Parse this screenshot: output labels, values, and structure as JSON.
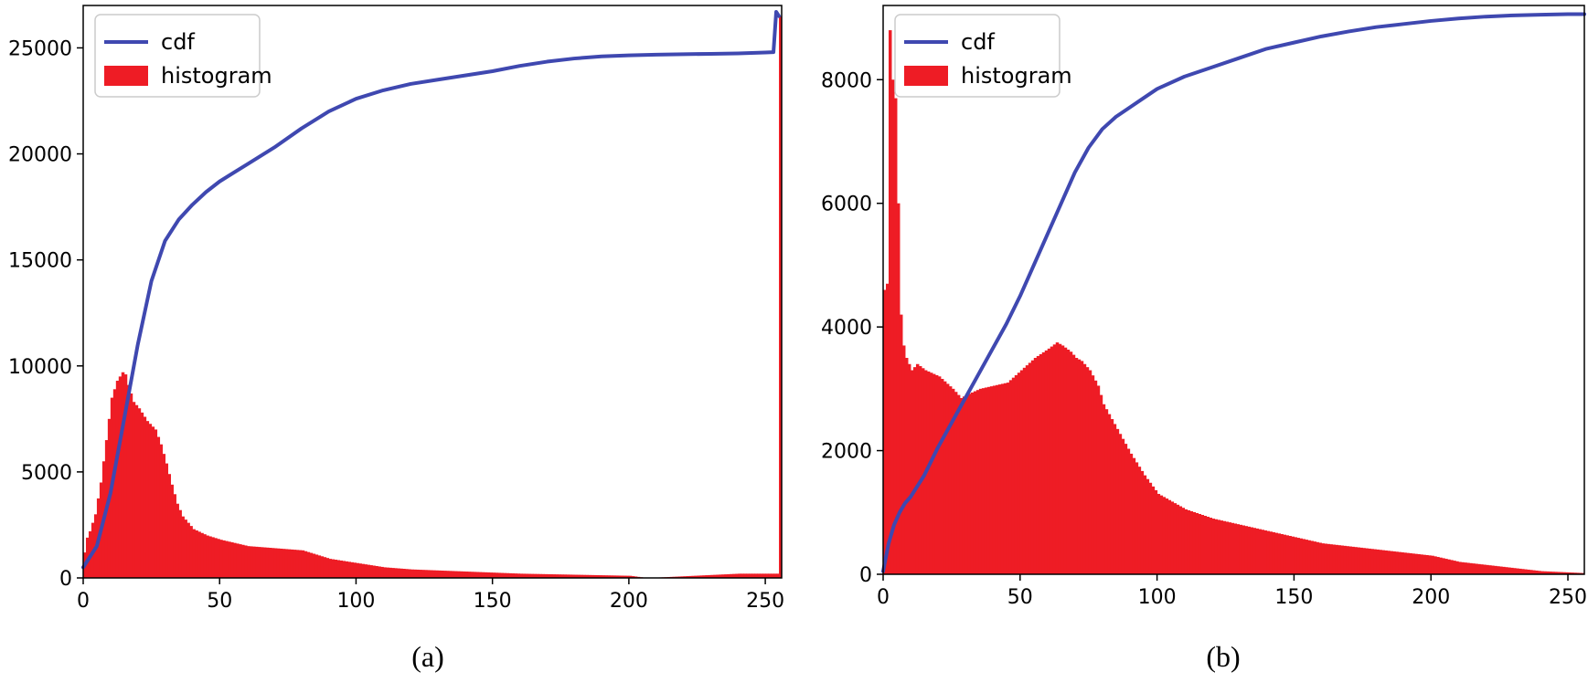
{
  "chart_data": [
    {
      "type": "bar",
      "panel_label": "(a)",
      "legend": [
        "cdf",
        "histogram"
      ],
      "legend_position": "top-left",
      "xlim": [
        0,
        256
      ],
      "ylim": [
        0,
        27000
      ],
      "x_ticks": [
        0,
        50,
        100,
        150,
        200,
        250
      ],
      "y_ticks": [
        0,
        5000,
        10000,
        15000,
        20000,
        25000
      ],
      "grid": false,
      "colors": {
        "histogram": "#ee1c25",
        "cdf": "#3f48b0"
      },
      "cdf": {
        "name": "cdf",
        "x": [
          0,
          5,
          10,
          15,
          20,
          25,
          30,
          35,
          40,
          45,
          50,
          60,
          70,
          80,
          90,
          100,
          110,
          120,
          130,
          140,
          150,
          160,
          170,
          180,
          190,
          200,
          210,
          220,
          230,
          240,
          250,
          253,
          254,
          255
        ],
        "y": [
          500,
          1500,
          4000,
          7500,
          11000,
          14000,
          15900,
          16900,
          17600,
          18200,
          18700,
          19500,
          20300,
          21200,
          22000,
          22600,
          23000,
          23300,
          23500,
          23700,
          23900,
          24150,
          24350,
          24500,
          24600,
          24650,
          24680,
          24700,
          24720,
          24740,
          24780,
          24800,
          26700,
          26500
        ]
      },
      "histogram": {
        "name": "histogram",
        "bins": [
          0,
          256
        ],
        "x": [
          0,
          1,
          2,
          4,
          6,
          8,
          10,
          12,
          14,
          15,
          16,
          18,
          20,
          23,
          26,
          28,
          30,
          32,
          34,
          36,
          40,
          45,
          50,
          60,
          70,
          80,
          90,
          100,
          110,
          120,
          140,
          160,
          180,
          200,
          206,
          207,
          240,
          241,
          254,
          255
        ],
        "y": [
          1200,
          1900,
          2200,
          3000,
          4500,
          6500,
          8500,
          9300,
          9700,
          9600,
          9100,
          8300,
          8000,
          7400,
          7000,
          6300,
          5400,
          4400,
          3500,
          2900,
          2300,
          2000,
          1800,
          1500,
          1400,
          1300,
          900,
          700,
          500,
          400,
          300,
          200,
          150,
          100,
          0,
          0,
          200,
          200,
          200,
          26500
        ]
      }
    },
    {
      "type": "bar",
      "panel_label": "(b)",
      "legend": [
        "cdf",
        "histogram"
      ],
      "legend_position": "top-left",
      "xlim": [
        0,
        256
      ],
      "ylim": [
        0,
        9200
      ],
      "x_ticks": [
        0,
        50,
        100,
        150,
        200,
        250
      ],
      "y_ticks": [
        0,
        2000,
        4000,
        6000,
        8000
      ],
      "grid": false,
      "colors": {
        "histogram": "#ee1c25",
        "cdf": "#3f48b0"
      },
      "cdf": {
        "name": "cdf",
        "x": [
          0,
          2,
          4,
          6,
          8,
          10,
          15,
          20,
          25,
          30,
          35,
          40,
          45,
          50,
          55,
          60,
          65,
          70,
          75,
          80,
          85,
          90,
          95,
          100,
          110,
          120,
          130,
          140,
          150,
          160,
          170,
          180,
          190,
          200,
          210,
          220,
          230,
          240,
          250,
          256
        ],
        "y": [
          50,
          500,
          800,
          1000,
          1150,
          1250,
          1600,
          2050,
          2450,
          2850,
          3250,
          3650,
          4050,
          4500,
          5000,
          5500,
          6000,
          6500,
          6900,
          7200,
          7400,
          7550,
          7700,
          7850,
          8050,
          8200,
          8350,
          8500,
          8600,
          8700,
          8780,
          8850,
          8900,
          8950,
          8990,
          9020,
          9040,
          9050,
          9060,
          9060
        ]
      },
      "histogram": {
        "name": "histogram",
        "bins": [
          0,
          256
        ],
        "x": [
          0,
          1,
          2,
          3,
          4,
          5,
          6,
          7,
          8,
          9,
          10,
          12,
          15,
          20,
          25,
          28,
          30,
          35,
          40,
          45,
          50,
          55,
          60,
          63,
          65,
          68,
          70,
          72,
          75,
          78,
          80,
          85,
          90,
          95,
          100,
          110,
          120,
          130,
          140,
          150,
          160,
          170,
          180,
          190,
          200,
          210,
          220,
          230,
          240,
          250,
          255
        ],
        "y": [
          4600,
          4700,
          8800,
          8000,
          7700,
          6000,
          4200,
          3700,
          3500,
          3400,
          3300,
          3400,
          3300,
          3200,
          3000,
          2850,
          2900,
          3000,
          3050,
          3100,
          3300,
          3500,
          3650,
          3750,
          3700,
          3600,
          3500,
          3450,
          3300,
          3050,
          2750,
          2350,
          1950,
          1600,
          1300,
          1050,
          900,
          800,
          700,
          600,
          500,
          450,
          400,
          350,
          300,
          200,
          150,
          100,
          50,
          30,
          20
        ]
      }
    }
  ]
}
